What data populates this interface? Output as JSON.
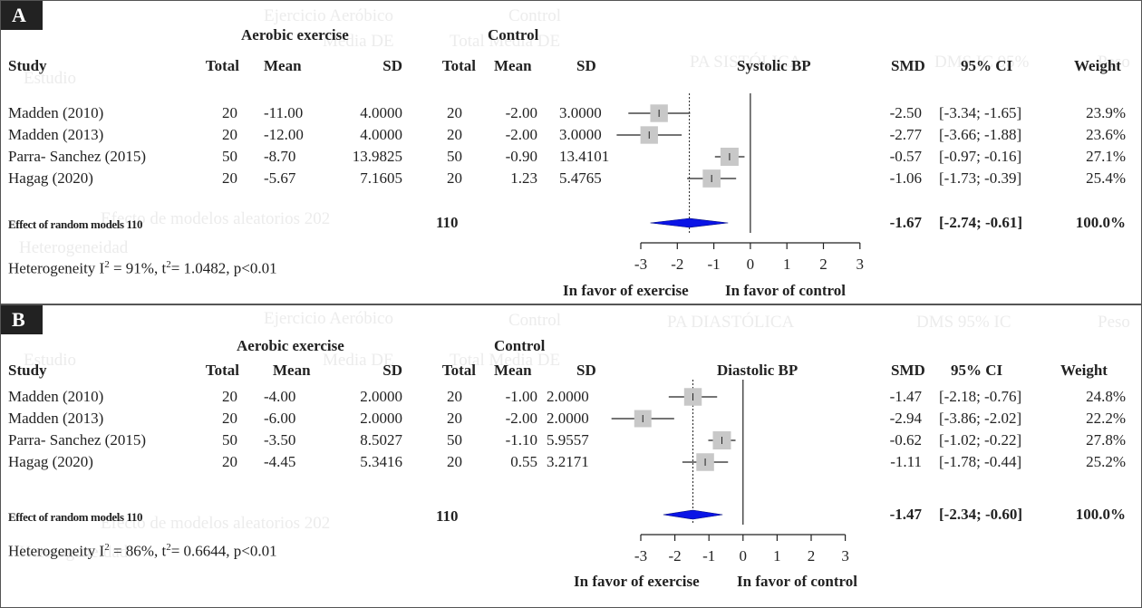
{
  "chart_data": [
    {
      "type": "forest",
      "panel_label": "A",
      "group_labels": {
        "experimental": "Aerobic exercise",
        "control": "Control"
      },
      "columns": [
        "Study",
        "Total",
        "Mean",
        "SD",
        "Total",
        "Mean",
        "SD"
      ],
      "plot_title": "Systolic BP",
      "result_columns": [
        "SMD",
        "95% CI",
        "Weight"
      ],
      "studies": [
        {
          "study": "Madden (2010)",
          "exp_total": "20",
          "exp_mean": "-11.00",
          "exp_sd": "4.0000",
          "ctl_total": "20",
          "ctl_mean": "-2.00",
          "ctl_sd": "3.0000",
          "smd": -2.5,
          "smd_text": "-2.50",
          "lower": -3.34,
          "upper": -1.65,
          "ci_text": "[-3.34; -1.65]",
          "weight": 23.9,
          "weight_text": "23.9%"
        },
        {
          "study": "Madden (2013)",
          "exp_total": "20",
          "exp_mean": "-12.00",
          "exp_sd": "4.0000",
          "ctl_total": "20",
          "ctl_mean": "-2.00",
          "ctl_sd": "3.0000",
          "smd": -2.77,
          "smd_text": "-2.77",
          "lower": -3.66,
          "upper": -1.88,
          "ci_text": "[-3.66; -1.88]",
          "weight": 23.6,
          "weight_text": "23.6%"
        },
        {
          "study": "Parra- Sanchez (2015)",
          "exp_total": "50",
          "exp_mean": "-8.70",
          "exp_sd": "13.9825",
          "ctl_total": "50",
          "ctl_mean": "-0.90",
          "ctl_sd": "13.4101",
          "smd": -0.57,
          "smd_text": "-0.57",
          "lower": -0.97,
          "upper": -0.16,
          "ci_text": "[-0.97; -0.16]",
          "weight": 27.1,
          "weight_text": "27.1%"
        },
        {
          "study": "Hagag (2020)",
          "exp_total": "20",
          "exp_mean": "-5.67",
          "exp_sd": "7.1605",
          "ctl_total": "20",
          "ctl_mean": "1.23",
          "ctl_sd": "5.4765",
          "smd": -1.06,
          "smd_text": "-1.06",
          "lower": -1.73,
          "upper": -0.39,
          "ci_text": "[-1.73; -0.39]",
          "weight": 25.4,
          "weight_text": "25.4%"
        }
      ],
      "summary": {
        "label": "Effect of random models",
        "exp_total": "110",
        "ctl_total": "110",
        "smd": -1.67,
        "smd_text": "-1.67",
        "lower": -2.74,
        "upper": -0.61,
        "ci_text": "[-2.74; -0.61]",
        "weight_text": "100.0%"
      },
      "heterogeneity": {
        "prefix": "Heterogeneity  I",
        "sup1": "2",
        "mid": " = 91%, t",
        "sup2": "2",
        "rest": "= 1.0482, p<0.01"
      },
      "axis": {
        "min": -3,
        "max": 3,
        "ticks": [
          -3,
          -2,
          -1,
          0,
          1,
          2,
          3
        ],
        "tick_labels": [
          "-3",
          "-2",
          "-1",
          "0",
          "1",
          "2",
          "3"
        ]
      },
      "favors": {
        "left": "In favor of exercise",
        "right": "In favor of control"
      },
      "colors": {
        "square": "#c8c8c8",
        "diamond": "#0a14e6",
        "line": "#222222"
      },
      "ghost_text": [
        "Ejercicio Aeróbico",
        "Control",
        "Media  DE",
        "Total  Media  DE",
        "Estudio",
        "PA SISTÓLICA",
        "DMS  IC 95%",
        "Peso",
        "Efecto de modelos aleatorios 202",
        "Heterogeneidad"
      ]
    },
    {
      "type": "forest",
      "panel_label": "B",
      "group_labels": {
        "experimental": "Aerobic exercise",
        "control": "Control"
      },
      "columns": [
        "Study",
        "Total",
        "Mean",
        "SD",
        "Total",
        "Mean",
        "SD"
      ],
      "plot_title": "Diastolic BP",
      "result_columns": [
        "SMD",
        "95% CI",
        "Weight"
      ],
      "studies": [
        {
          "study": "Madden (2010)",
          "exp_total": "20",
          "exp_mean": "-4.00",
          "exp_sd": "2.0000",
          "ctl_total": "20",
          "ctl_mean": "-1.00",
          "ctl_sd": "2.0000",
          "smd": -1.47,
          "smd_text": "-1.47",
          "lower": -2.18,
          "upper": -0.76,
          "ci_text": "[-2.18; -0.76]",
          "weight": 24.8,
          "weight_text": "24.8%"
        },
        {
          "study": "Madden (2013)",
          "exp_total": "20",
          "exp_mean": "-6.00",
          "exp_sd": "2.0000",
          "ctl_total": "20",
          "ctl_mean": "-2.00",
          "ctl_sd": "2.0000",
          "smd": -2.94,
          "smd_text": "-2.94",
          "lower": -3.86,
          "upper": -2.02,
          "ci_text": "[-3.86; -2.02]",
          "weight": 22.2,
          "weight_text": "22.2%"
        },
        {
          "study": "Parra- Sanchez (2015)",
          "exp_total": "50",
          "exp_mean": "-3.50",
          "exp_sd": "8.5027",
          "ctl_total": "50",
          "ctl_mean": "-1.10",
          "ctl_sd": "5.9557",
          "smd": -0.62,
          "smd_text": "-0.62",
          "lower": -1.02,
          "upper": -0.22,
          "ci_text": "[-1.02; -0.22]",
          "weight": 27.8,
          "weight_text": "27.8%"
        },
        {
          "study": "Hagag (2020)",
          "exp_total": "20",
          "exp_mean": "-4.45",
          "exp_sd": "5.3416",
          "ctl_total": "20",
          "ctl_mean": "0.55",
          "ctl_sd": "3.2171",
          "smd": -1.11,
          "smd_text": "-1.11",
          "lower": -1.78,
          "upper": -0.44,
          "ci_text": "[-1.78; -0.44]",
          "weight": 25.2,
          "weight_text": "25.2%"
        }
      ],
      "summary": {
        "label": "Effect of random models",
        "exp_total": "110",
        "ctl_total": "110",
        "smd": -1.47,
        "smd_text": "-1.47",
        "lower": -2.34,
        "upper": -0.6,
        "ci_text": "[-2.34; -0.60]",
        "weight_text": "100.0%"
      },
      "heterogeneity": {
        "prefix": "Heterogeneity I",
        "sup1": "2",
        "mid": " = 86%, t",
        "sup2": "2",
        "rest": "= 0.6644, p<0.01"
      },
      "axis": {
        "min": -3,
        "max": 3,
        "ticks": [
          -3,
          -2,
          -1,
          0,
          1,
          2,
          3
        ],
        "tick_labels": [
          "-3",
          "-2",
          "-1",
          "0",
          "1",
          "2",
          "3"
        ]
      },
      "favors": {
        "left": "In favor of exercise",
        "right": "In favor of control"
      },
      "colors": {
        "square": "#c8c8c8",
        "diamond": "#0a14e6",
        "line": "#222222"
      },
      "ghost_text": [
        "Ejercicio Aeróbico",
        "Control",
        "Media  DE",
        "Total  Media  DE",
        "Estudio",
        "PA DIASTÓLICA",
        "DMS  95% IC",
        "Peso",
        "Efecto de modelos aleatorios 202",
        "Heterogeneidad"
      ]
    }
  ]
}
